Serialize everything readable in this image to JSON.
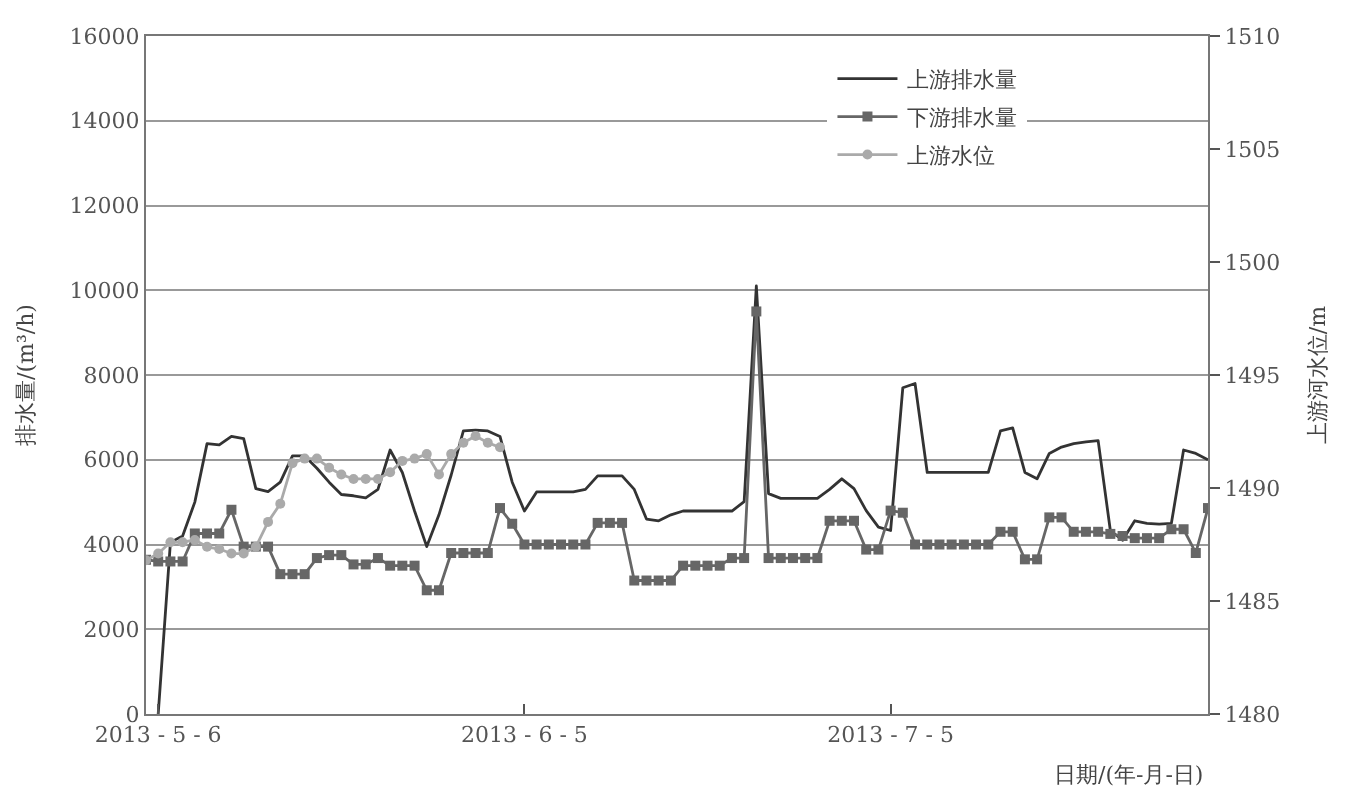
{
  "chart_data": {
    "type": "line",
    "xlabel": "日期/(年-月-日)",
    "ylabel": "排水量/(m³/h)",
    "y2label": "上游河水位/m",
    "x": [
      "2013-05-05",
      "2013-05-06",
      "2013-05-07",
      "2013-05-08",
      "2013-05-09",
      "2013-05-10",
      "2013-05-11",
      "2013-05-12",
      "2013-05-13",
      "2013-05-14",
      "2013-05-15",
      "2013-05-16",
      "2013-05-17",
      "2013-05-18",
      "2013-05-19",
      "2013-05-20",
      "2013-05-21",
      "2013-05-22",
      "2013-05-23",
      "2013-05-24",
      "2013-05-25",
      "2013-05-26",
      "2013-05-27",
      "2013-05-28",
      "2013-05-29",
      "2013-05-30",
      "2013-05-31",
      "2013-06-01",
      "2013-06-02",
      "2013-06-03",
      "2013-06-04",
      "2013-06-05",
      "2013-06-06",
      "2013-06-07",
      "2013-06-08",
      "2013-06-09",
      "2013-06-10",
      "2013-06-11",
      "2013-06-12",
      "2013-06-13",
      "2013-06-14",
      "2013-06-15",
      "2013-06-16",
      "2013-06-17",
      "2013-06-18",
      "2013-06-19",
      "2013-06-20",
      "2013-06-21",
      "2013-06-22",
      "2013-06-23",
      "2013-06-24",
      "2013-06-25",
      "2013-06-26",
      "2013-06-27",
      "2013-06-28",
      "2013-06-29",
      "2013-06-30",
      "2013-07-01",
      "2013-07-02",
      "2013-07-03",
      "2013-07-04",
      "2013-07-05",
      "2013-07-06",
      "2013-07-07",
      "2013-07-08",
      "2013-07-09",
      "2013-07-10",
      "2013-07-11",
      "2013-07-12",
      "2013-07-13",
      "2013-07-14",
      "2013-07-15",
      "2013-07-16",
      "2013-07-17",
      "2013-07-18",
      "2013-07-19",
      "2013-07-20",
      "2013-07-21",
      "2013-07-22",
      "2013-07-23",
      "2013-07-24",
      "2013-07-25",
      "2013-07-26",
      "2013-07-27",
      "2013-07-28",
      "2013-07-29",
      "2013-07-30",
      "2013-07-31"
    ],
    "series": [
      {
        "name": "上游排水量",
        "color": "#333333",
        "marker": "none",
        "values": [
          null,
          0,
          4050,
          4200,
          5000,
          6380,
          6350,
          6550,
          6500,
          5320,
          5250,
          5470,
          6090,
          6090,
          5800,
          5470,
          5180,
          5150,
          5100,
          5300,
          6230,
          5700,
          4790,
          3950,
          4700,
          5640,
          6680,
          6700,
          6680,
          6550,
          5470,
          4790,
          5240,
          5240,
          5240,
          5240,
          5300,
          5620,
          5620,
          5620,
          5300,
          4600,
          4560,
          4700,
          4790,
          4790,
          4790,
          4790,
          4790,
          5010,
          10100,
          5200,
          5090,
          5090,
          5090,
          5090,
          5300,
          5550,
          5320,
          4800,
          4410,
          4330,
          7700,
          7800,
          5700,
          5700,
          5700,
          5700,
          5700,
          5700,
          6680,
          6750,
          5700,
          5550,
          6150,
          6300,
          6380,
          6420,
          6450,
          4330,
          4100,
          4560,
          4500,
          4480,
          4500,
          6230,
          6150,
          6000
        ]
      },
      {
        "name": "下游排水量",
        "color": "#666666",
        "marker": "square",
        "values": [
          3640,
          3600,
          3600,
          3600,
          4260,
          4260,
          4260,
          4820,
          3950,
          3950,
          3950,
          3300,
          3300,
          3300,
          3680,
          3750,
          3750,
          3530,
          3530,
          3680,
          3500,
          3500,
          3500,
          2920,
          2920,
          3800,
          3800,
          3800,
          3800,
          4860,
          4490,
          4000,
          4000,
          4000,
          4000,
          4000,
          4000,
          4510,
          4510,
          4510,
          3150,
          3150,
          3150,
          3150,
          3500,
          3500,
          3500,
          3500,
          3680,
          3680,
          9500,
          3680,
          3680,
          3680,
          3680,
          3680,
          4560,
          4560,
          4560,
          3880,
          3880,
          4800,
          4750,
          4000,
          4000,
          4000,
          4000,
          4000,
          4000,
          4000,
          4300,
          4300,
          3650,
          3650,
          4640,
          4640,
          4300,
          4300,
          4300,
          4250,
          4200,
          4150,
          4150,
          4150,
          4360,
          4360,
          3800,
          4860
        ]
      },
      {
        "name": "上游水位",
        "color": "#aaaaaa",
        "marker": "circle",
        "axis": "y2",
        "x": [
          "2013-05-05",
          "2013-05-06",
          "2013-05-07",
          "2013-05-08",
          "2013-05-09",
          "2013-05-10",
          "2013-05-11",
          "2013-05-12",
          "2013-05-13",
          "2013-05-14",
          "2013-05-15",
          "2013-05-16",
          "2013-05-17",
          "2013-05-18",
          "2013-05-19",
          "2013-05-20",
          "2013-05-21",
          "2013-05-22",
          "2013-05-23",
          "2013-05-24",
          "2013-05-25",
          "2013-05-26",
          "2013-05-27",
          "2013-05-28",
          "2013-05-29",
          "2013-05-30",
          "2013-05-31",
          "2013-06-01",
          "2013-06-02",
          "2013-06-03"
        ],
        "values": [
          1486.8,
          1487.1,
          1487.6,
          1487.6,
          1487.7,
          1487.4,
          1487.3,
          1487.1,
          1487.1,
          1487.4,
          1488.5,
          1489.3,
          1491.1,
          1491.3,
          1491.3,
          1490.9,
          1490.6,
          1490.4,
          1490.4,
          1490.4,
          1490.7,
          1491.2,
          1491.3,
          1491.5,
          1490.6,
          1491.5,
          1492.0,
          1492.3,
          1492.0,
          1491.8
        ]
      }
    ],
    "xlim": [
      "2013-05-05",
      "2013-07-31"
    ],
    "xticks": [
      {
        "value": "2013-05-06",
        "label": "2013 - 5 - 6"
      },
      {
        "value": "2013-06-05",
        "label": "2013 - 6 - 5"
      },
      {
        "value": "2013-07-05",
        "label": "2013 - 7 - 5"
      }
    ],
    "ylim": [
      0,
      16000
    ],
    "yticks": [
      0,
      2000,
      4000,
      6000,
      8000,
      10000,
      12000,
      14000,
      16000
    ],
    "y2lim": [
      1480,
      1510
    ],
    "y2ticks": [
      1480,
      1485,
      1490,
      1495,
      1500,
      1505,
      1510
    ],
    "grid": "y",
    "legend": "top right",
    "line_style": "solid"
  }
}
